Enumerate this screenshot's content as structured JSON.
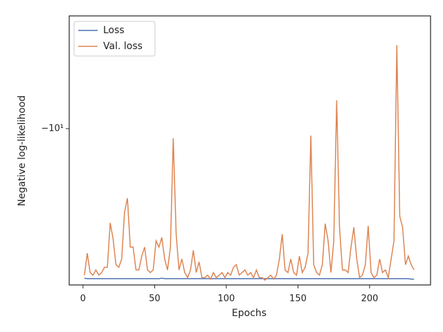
{
  "chart_data": {
    "type": "line",
    "xlabel": "Epochs",
    "ylabel": "Negative log-likelihood",
    "x": [
      1,
      3,
      5,
      7,
      9,
      11,
      13,
      15,
      17,
      19,
      21,
      23,
      25,
      27,
      29,
      31,
      33,
      35,
      37,
      39,
      41,
      43,
      45,
      47,
      49,
      51,
      53,
      55,
      57,
      59,
      61,
      63,
      65,
      67,
      69,
      71,
      73,
      75,
      77,
      79,
      81,
      83,
      85,
      87,
      89,
      91,
      93,
      95,
      97,
      99,
      101,
      103,
      105,
      107,
      109,
      111,
      113,
      115,
      117,
      119,
      121,
      123,
      125,
      127,
      129,
      131,
      133,
      135,
      137,
      139,
      141,
      143,
      145,
      147,
      149,
      151,
      153,
      155,
      157,
      159,
      161,
      163,
      165,
      167,
      169,
      171,
      173,
      175,
      177,
      179,
      181,
      183,
      185,
      187,
      189,
      191,
      193,
      195,
      197,
      199,
      201,
      203,
      205,
      207,
      209,
      211,
      213,
      215,
      217,
      219,
      221,
      223,
      225,
      227,
      229,
      231
    ],
    "series": [
      {
        "name": "Loss",
        "color": "#4c72b0",
        "values": [
          -28.6,
          -28.7,
          -28.7,
          -28.7,
          -28.7,
          -28.7,
          -28.7,
          -28.7,
          -28.7,
          -28.7,
          -28.7,
          -28.7,
          -28.7,
          -28.7,
          -28.7,
          -28.7,
          -28.7,
          -28.7,
          -28.7,
          -28.7,
          -28.7,
          -28.7,
          -28.7,
          -28.7,
          -28.7,
          -28.7,
          -28.7,
          -28.6,
          -28.7,
          -28.7,
          -28.7,
          -28.7,
          -28.7,
          -28.7,
          -28.7,
          -28.7,
          -28.7,
          -28.7,
          -28.7,
          -28.7,
          -28.7,
          -28.7,
          -28.7,
          -28.7,
          -28.7,
          -28.7,
          -28.7,
          -28.7,
          -28.7,
          -28.7,
          -28.7,
          -28.7,
          -28.7,
          -28.7,
          -28.7,
          -28.7,
          -28.7,
          -28.7,
          -28.7,
          -28.7,
          -28.7,
          -28.7,
          -28.7,
          -28.7,
          -28.7,
          -28.7,
          -28.7,
          -28.7,
          -28.7,
          -28.7,
          -28.7,
          -28.7,
          -28.7,
          -28.7,
          -28.7,
          -28.7,
          -28.7,
          -28.7,
          -28.7,
          -28.7,
          -28.7,
          -28.7,
          -28.7,
          -28.7,
          -28.7,
          -28.7,
          -28.7,
          -28.7,
          -28.7,
          -28.7,
          -28.7,
          -28.7,
          -28.7,
          -28.7,
          -28.7,
          -28.7,
          -28.7,
          -28.7,
          -28.7,
          -28.7,
          -28.7,
          -28.7,
          -28.7,
          -28.7,
          -28.7,
          -28.7,
          -28.7,
          -28.7,
          -28.7,
          -28.7,
          -28.7,
          -28.7,
          -28.7,
          -28.7,
          -28.8,
          -28.8
        ]
      },
      {
        "name": "Val. loss",
        "color": "#dd8452",
        "values": [
          -28,
          -24,
          -27.5,
          -28,
          -27,
          -28,
          -27.5,
          -26.5,
          -26.5,
          -19.4,
          -21.7,
          -26,
          -26.5,
          -25,
          -18,
          -16.3,
          -23,
          -23,
          -27,
          -27,
          -24.5,
          -23,
          -27,
          -27.5,
          -27,
          -22,
          -23,
          -21.5,
          -25,
          -27,
          -23,
          -10.7,
          -21,
          -27,
          -25,
          -27.5,
          -28.5,
          -27,
          -23.5,
          -27.5,
          -25.5,
          -28.5,
          -28.5,
          -28,
          -28.8,
          -27.5,
          -28.5,
          -28,
          -27.5,
          -28.5,
          -27.5,
          -28,
          -26.5,
          -26,
          -28,
          -27.5,
          -27,
          -28,
          -27.5,
          -28.5,
          -27,
          -28.5,
          -28.5,
          -29,
          -28.5,
          -28,
          -28.8,
          -28,
          -25,
          -21,
          -27,
          -27.5,
          -25,
          -27.5,
          -28,
          -24.5,
          -27.5,
          -26.5,
          -24,
          -10.5,
          -26,
          -27.5,
          -28,
          -26,
          -19.5,
          -22,
          -27.5,
          -22,
          -8.2,
          -20,
          -27,
          -27,
          -27.5,
          -23,
          -20,
          -25,
          -28.5,
          -28,
          -26,
          -19.8,
          -27.5,
          -28.5,
          -28,
          -25,
          -27.5,
          -27,
          -28.5,
          -25,
          -22,
          -5.56,
          -18.5,
          -20,
          -26,
          -24.5,
          -26,
          -27
        ]
      }
    ],
    "xlim": [
      -9.6,
      242.5
    ],
    "xticks": [
      0,
      50,
      100,
      150,
      200
    ],
    "ylim": [
      -30,
      -4.53
    ],
    "yticks": [
      {
        "value": -10,
        "label": "−10¹"
      }
    ],
    "yscale": "symlog",
    "legend": "upper left"
  }
}
